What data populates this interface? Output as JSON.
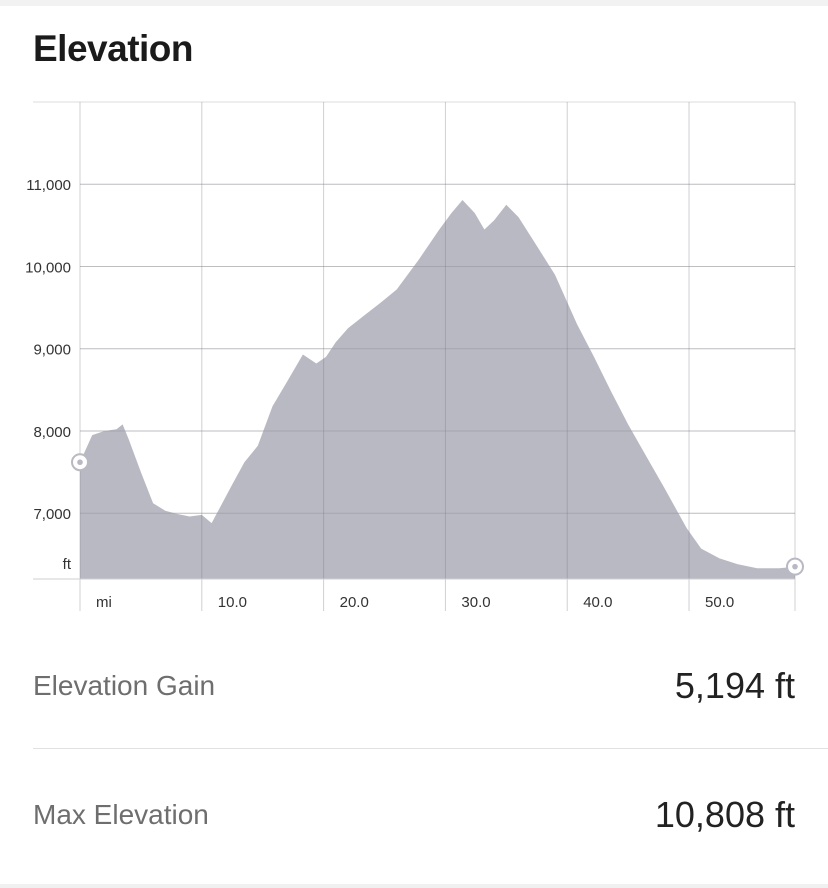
{
  "title": "Elevation",
  "stats": [
    {
      "label": "Elevation Gain",
      "value": "5,194 ft"
    },
    {
      "label": "Max Elevation",
      "value": "10,808 ft"
    }
  ],
  "colors": {
    "fill": "#b9b9c4",
    "grid": "#dddddd",
    "marker": "#ffffff",
    "marker_ring": "#b9b9c4"
  },
  "chart_data": {
    "type": "area",
    "xlabel": "mi",
    "ylabel": "ft",
    "x_ticks": [
      10,
      20,
      30,
      40,
      50
    ],
    "x_tick_labels": [
      "10.0",
      "20.0",
      "30.0",
      "40.0",
      "50.0"
    ],
    "y_ticks": [
      7000,
      8000,
      9000,
      10000,
      11000
    ],
    "y_tick_labels": [
      "7,000",
      "8,000",
      "9,000",
      "10,000",
      "11,000"
    ],
    "xlim": [
      0,
      58.7
    ],
    "ylim": [
      6200,
      12000
    ],
    "grid": true,
    "series": [
      {
        "x": [
          0,
          1,
          2,
          3,
          3.5,
          4,
          5,
          6,
          7,
          8,
          9,
          10,
          10.8,
          11.6,
          12.5,
          13.5,
          14.6,
          15.8,
          17,
          18.3,
          19.4,
          20.2,
          21,
          22,
          23.3,
          24.6,
          26,
          27.8,
          29.5,
          30.5,
          31.4,
          32.4,
          33.2,
          34,
          35,
          36,
          37.5,
          39,
          40.8,
          42.2,
          43.6,
          45,
          46.5,
          48,
          49.8,
          51,
          52.5,
          54,
          55.6,
          57.4,
          58.7
        ],
        "y": [
          7620,
          7950,
          8000,
          8020,
          8080,
          7900,
          7500,
          7120,
          7030,
          6990,
          6960,
          6980,
          6880,
          7100,
          7350,
          7620,
          7820,
          8300,
          8600,
          8930,
          8820,
          8900,
          9080,
          9250,
          9400,
          9550,
          9720,
          10080,
          10450,
          10650,
          10808,
          10650,
          10450,
          10560,
          10750,
          10600,
          10250,
          9900,
          9300,
          8900,
          8480,
          8080,
          7690,
          7300,
          6820,
          6570,
          6450,
          6380,
          6330,
          6330,
          6350
        ]
      }
    ],
    "start_elevation": 7620,
    "end_elevation": 6350
  }
}
